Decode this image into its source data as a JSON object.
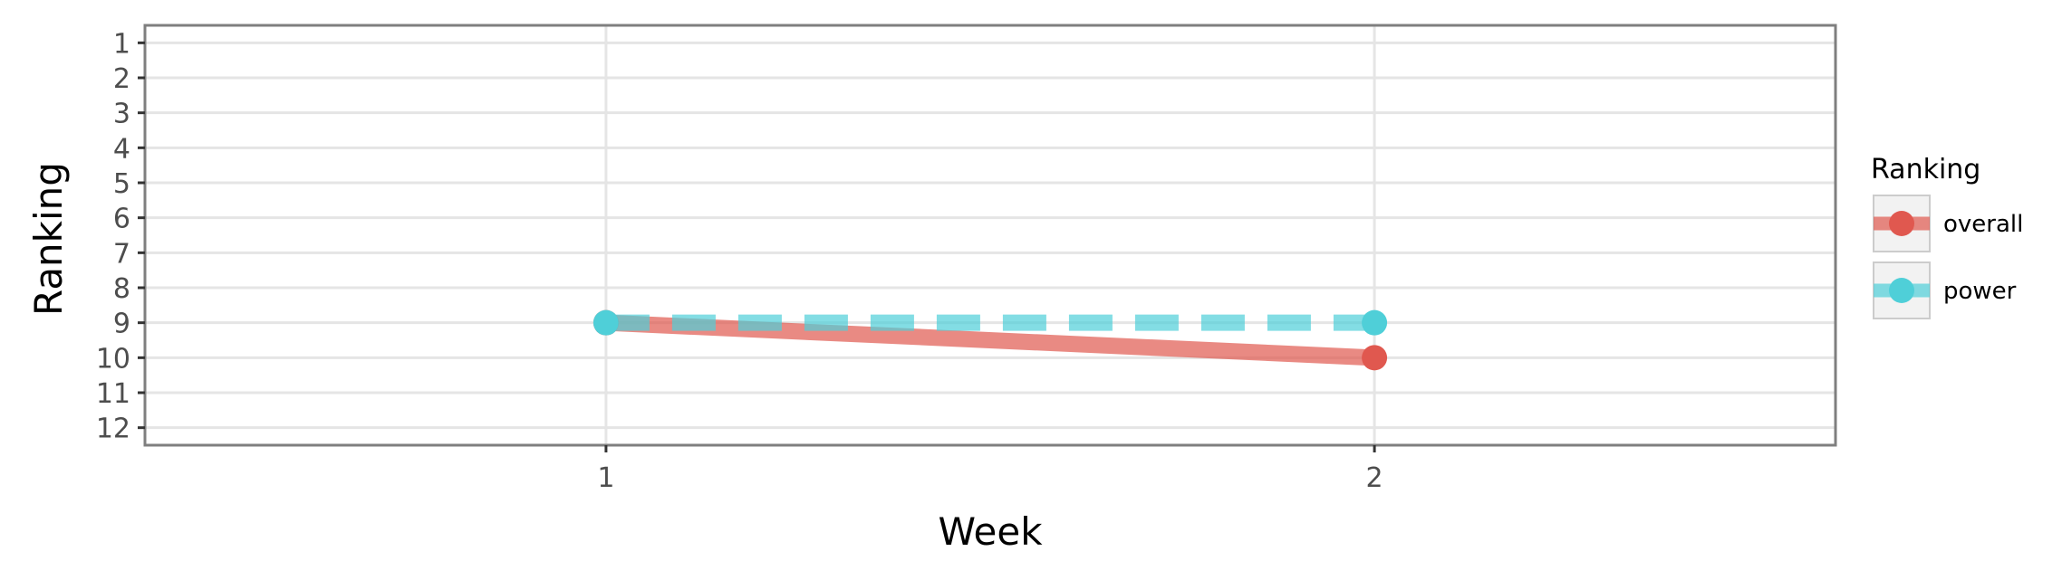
{
  "chart_data": {
    "type": "line",
    "title": "",
    "xlabel": "Week",
    "ylabel": "Ranking",
    "x": [
      1,
      2
    ],
    "x_ticks": [
      "1",
      "2"
    ],
    "xlim": [
      0.4,
      2.6
    ],
    "y_ticks": [
      "1",
      "2",
      "3",
      "4",
      "5",
      "6",
      "7",
      "8",
      "9",
      "10",
      "11",
      "12"
    ],
    "ylim": [
      12.5,
      0.5
    ],
    "y_reversed": true,
    "grid": true,
    "legend": {
      "title": "Ranking",
      "placement": "right",
      "entries": [
        "overall",
        "power"
      ]
    },
    "series": [
      {
        "name": "overall",
        "values": [
          9,
          10
        ],
        "color": "#e0584f",
        "line_style": "solid"
      },
      {
        "name": "power",
        "values": [
          9,
          9
        ],
        "color": "#4fcfd8",
        "line_style": "dashed"
      }
    ]
  }
}
